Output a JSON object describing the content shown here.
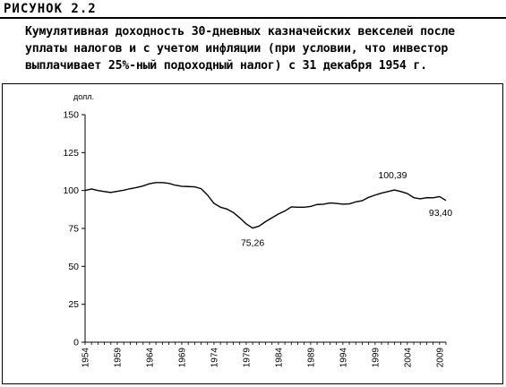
{
  "figure": {
    "label": "РИСУНОК 2.2",
    "caption_lines": [
      "Кумулятивная доходность 30-дневных казначейских векселей после",
      "уплаты налогов и с учетом инфляции (при условии, что инвестор",
      "выплачивает 25%-ный подоходный налог) с 31 декабря 1954 г."
    ]
  },
  "chart_data": {
    "type": "line",
    "ylabel": "долл.",
    "ylim": [
      0,
      150
    ],
    "yticks": [
      0,
      25,
      50,
      75,
      100,
      125,
      150
    ],
    "xlim": [
      1954,
      2010
    ],
    "xticks": [
      "1954",
      "1959",
      "1964",
      "1969",
      "1974",
      "1979",
      "1984",
      "1989",
      "1994",
      "1999",
      "2004",
      "2009"
    ],
    "grid": false,
    "series": [
      {
        "x": [
          1954,
          1955,
          1956,
          1957,
          1958,
          1959,
          1960,
          1961,
          1962,
          1963,
          1964,
          1965,
          1966,
          1967,
          1968,
          1969,
          1970,
          1971,
          1972,
          1973,
          1974,
          1975,
          1976,
          1977,
          1978,
          1979,
          1980,
          1981,
          1982,
          1983,
          1984,
          1985,
          1986,
          1987,
          1988,
          1989,
          1990,
          1991,
          1992,
          1993,
          1994,
          1995,
          1996,
          1997,
          1998,
          1999,
          2000,
          2001,
          2002,
          2003,
          2004,
          2005,
          2006,
          2007,
          2008,
          2009,
          2010
        ],
        "values": [
          100,
          101,
          100,
          99.3,
          98.7,
          99.5,
          100.2,
          101.2,
          102,
          103,
          104.5,
          105.2,
          105.2,
          104.7,
          103.5,
          102.8,
          102.6,
          102.4,
          101.2,
          97,
          91.5,
          89,
          87.8,
          85.5,
          82,
          78,
          75.26,
          76.5,
          79.5,
          82,
          84.5,
          86.5,
          89.2,
          89,
          89,
          89.5,
          90.8,
          91,
          91.8,
          91.5,
          91,
          91.2,
          92.5,
          93.3,
          95.5,
          97,
          98.3,
          99.3,
          100.39,
          99.3,
          98,
          95.3,
          94.5,
          95.3,
          95.2,
          96,
          93.4
        ]
      }
    ],
    "annotations": [
      {
        "x": 1980,
        "y": 75.26,
        "text": "75,26"
      },
      {
        "x": 2002,
        "y": 100.39,
        "text": "100,39"
      },
      {
        "x": 2010,
        "y": 93.4,
        "text": "93,40"
      }
    ]
  }
}
